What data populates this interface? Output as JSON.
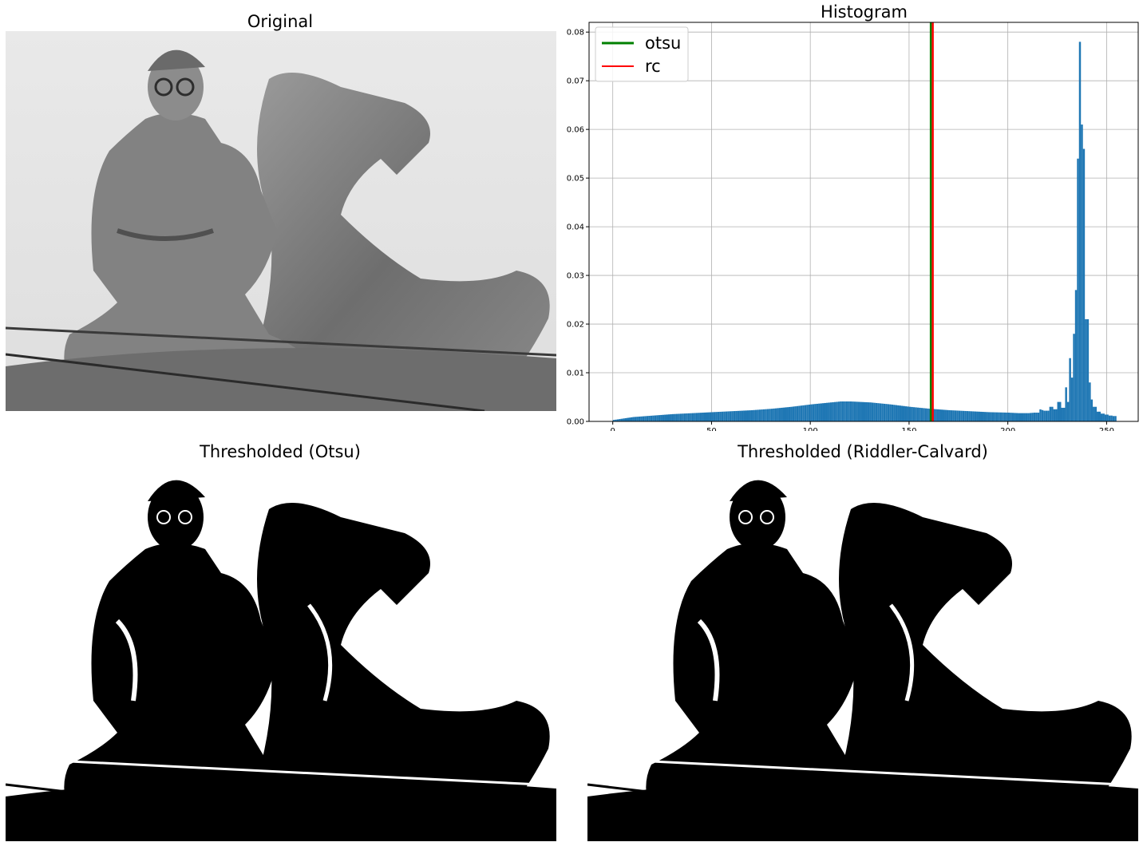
{
  "panels": {
    "original": {
      "title": "Original"
    },
    "histogram": {
      "title": "Histogram"
    },
    "otsu": {
      "title": "Thresholded (Otsu)"
    },
    "rc": {
      "title": "Thresholded (Riddler-Calvard)"
    }
  },
  "chart_data": {
    "type": "bar",
    "title": "Histogram",
    "xlabel": "",
    "ylabel": "",
    "xlim": [
      -12,
      266
    ],
    "ylim": [
      0,
      0.082
    ],
    "xticks": [
      0,
      50,
      100,
      150,
      200,
      250
    ],
    "yticks": [
      0.0,
      0.01,
      0.02,
      0.03,
      0.04,
      0.05,
      0.06,
      0.07,
      0.08
    ],
    "ytick_labels": [
      "0.00",
      "0.01",
      "0.02",
      "0.03",
      "0.04",
      "0.05",
      "0.06",
      "0.07",
      "0.08"
    ],
    "grid": true,
    "legend_position": "top-left",
    "bar_color": "#1f77b4",
    "bins_x": [
      0,
      5,
      10,
      20,
      30,
      40,
      50,
      60,
      70,
      80,
      90,
      100,
      110,
      115,
      120,
      130,
      140,
      150,
      160,
      170,
      180,
      190,
      200,
      205,
      210,
      213,
      215,
      218,
      220,
      222,
      224,
      226,
      228,
      229,
      230,
      231,
      232,
      233,
      234,
      235,
      236,
      237,
      238,
      239,
      240,
      241,
      242,
      244,
      246,
      248,
      250,
      252,
      254
    ],
    "bins_y": [
      0.0003,
      0.0006,
      0.0009,
      0.0012,
      0.0015,
      0.0017,
      0.0019,
      0.0021,
      0.0023,
      0.0026,
      0.003,
      0.0035,
      0.0039,
      0.0041,
      0.0041,
      0.0039,
      0.0035,
      0.003,
      0.0026,
      0.0023,
      0.0021,
      0.0019,
      0.0018,
      0.0017,
      0.0017,
      0.0018,
      0.0026,
      0.0022,
      0.003,
      0.0025,
      0.004,
      0.0028,
      0.007,
      0.004,
      0.013,
      0.009,
      0.018,
      0.027,
      0.054,
      0.078,
      0.061,
      0.056,
      0.021,
      0.021,
      0.008,
      0.0045,
      0.003,
      0.002,
      0.0016,
      0.0014,
      0.0012,
      0.0011,
      0.001
    ],
    "series": [
      {
        "name": "otsu",
        "type": "vline",
        "x": 161,
        "color": "#008000"
      },
      {
        "name": "rc",
        "type": "vline",
        "x": 162,
        "color": "#ff0000"
      }
    ]
  }
}
